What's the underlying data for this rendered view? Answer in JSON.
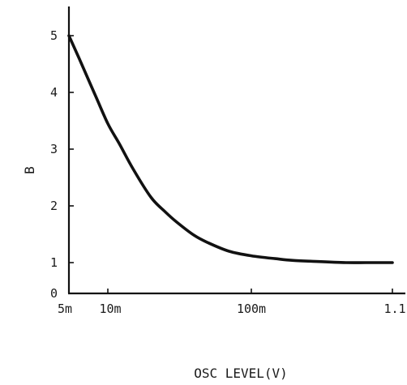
{
  "chart_data": {
    "type": "line",
    "title": "",
    "xlabel": "OSC LEVEL(V)",
    "ylabel": "B",
    "x_scale": "log",
    "xlim": [
      0.005,
      1.1
    ],
    "ylim": [
      0,
      5.5
    ],
    "x_ticks": [
      {
        "value": 0.005,
        "label": "5m"
      },
      {
        "value": 0.01,
        "label": "10m"
      },
      {
        "value": 0.1,
        "label": "100m"
      },
      {
        "value": 1.1,
        "label": "1.1"
      }
    ],
    "y_ticks": [
      {
        "value": 0,
        "label": "0"
      },
      {
        "value": 1,
        "label": "1"
      },
      {
        "value": 2,
        "label": "2"
      },
      {
        "value": 3,
        "label": "3"
      },
      {
        "value": 4,
        "label": "4"
      },
      {
        "value": 5,
        "label": "5"
      }
    ],
    "grid": false,
    "legend": "none",
    "line_color": "#111111",
    "series": [
      {
        "x": [
          0.005,
          0.006,
          0.007,
          0.008,
          0.01,
          0.012,
          0.015,
          0.02,
          0.025,
          0.03,
          0.04,
          0.05,
          0.07,
          0.1,
          0.15,
          0.2,
          0.3,
          0.5,
          0.7,
          1.0,
          1.1
        ],
        "values": [
          5.0,
          4.6,
          4.25,
          3.95,
          3.45,
          3.1,
          2.65,
          2.15,
          1.9,
          1.72,
          1.48,
          1.35,
          1.2,
          1.12,
          1.07,
          1.04,
          1.02,
          1.0,
          1.0,
          1.0,
          1.0
        ]
      }
    ]
  }
}
